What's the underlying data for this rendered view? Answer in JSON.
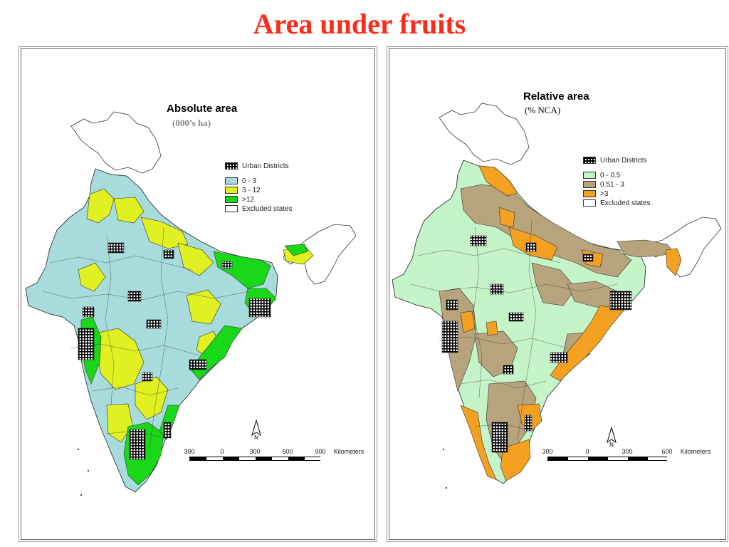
{
  "title": "Area under fruits",
  "left_map": {
    "title": "Absolute area",
    "subtitle": "(000’s ha)",
    "legend": [
      {
        "label": "Urban Districts",
        "color": "hatch"
      },
      {
        "label": "0 - 3",
        "color": "#a8dcdc"
      },
      {
        "label": "3 - 12",
        "color": "#e0f020"
      },
      {
        "label": ">12",
        "color": "#18d818"
      },
      {
        "label": "Excluded states",
        "color": "#ffffff"
      }
    ],
    "scale_labels": [
      "300",
      "0",
      "300",
      "600",
      "900"
    ],
    "scale_unit": "Kilometers",
    "north_label": "N"
  },
  "right_map": {
    "title": "Relative area",
    "subtitle": "(% NCA)",
    "legend": [
      {
        "label": "Urban Districts",
        "color": "hatch"
      },
      {
        "label": "0 - 0.5",
        "color": "#c4f4c8"
      },
      {
        "label": "0.51 - 3",
        "color": "#b8a47c"
      },
      {
        "label": ">3",
        "color": "#f4a020"
      },
      {
        "label": "Excluded states",
        "color": "#ffffff"
      }
    ],
    "scale_labels": [
      "300",
      "0",
      "300",
      "600"
    ],
    "scale_unit": "Kilometers",
    "north_label": "N"
  }
}
